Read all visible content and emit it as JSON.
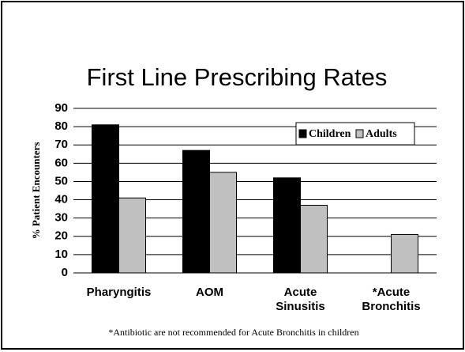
{
  "chart_data": {
    "type": "bar",
    "title": "First Line Prescribing Rates",
    "ylabel": "% Patient Encounters",
    "categories": [
      "Pharyngitis",
      "AOM",
      "Acute Sinusitis",
      "*Acute Bronchitis"
    ],
    "series": [
      {
        "name": "Children",
        "color": "#000000",
        "values": [
          81,
          67,
          52,
          null
        ]
      },
      {
        "name": "Adults",
        "color": "#c0c0c0",
        "values": [
          41,
          55,
          37,
          21
        ]
      }
    ],
    "ylim": [
      0,
      90
    ],
    "yticks": [
      0,
      10,
      20,
      30,
      40,
      50,
      60,
      70,
      80,
      90
    ],
    "grid": true,
    "legend": "upper right",
    "note": "*Antibiotic are not recommended for Acute Bronchitis in children"
  }
}
